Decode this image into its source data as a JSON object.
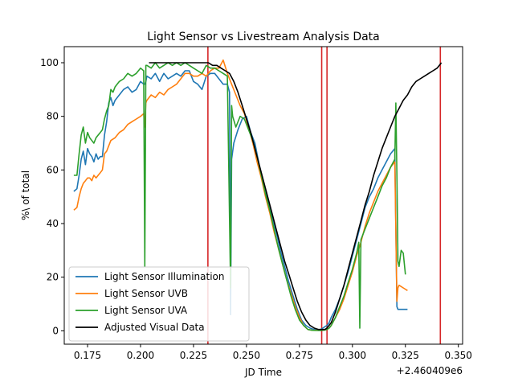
{
  "chart_data": {
    "type": "line",
    "title": "Light Sensor vs Livestream Analysis Data",
    "xlabel": "JD Time",
    "ylabel": "%\\ of total",
    "x_offset_label": "+2.460409e6",
    "xlim": [
      0.164,
      0.352
    ],
    "ylim": [
      -5,
      106
    ],
    "xticks": [
      0.175,
      0.2,
      0.225,
      0.25,
      0.275,
      0.3,
      0.325,
      0.35
    ],
    "xtick_labels": [
      "0.175",
      "0.200",
      "0.225",
      "0.250",
      "0.275",
      "0.300",
      "0.325",
      "0.350"
    ],
    "yticks": [
      0,
      20,
      40,
      60,
      80,
      100
    ],
    "ytick_labels": [
      "0",
      "20",
      "40",
      "60",
      "80",
      "100"
    ],
    "grid": false,
    "legend_position": "lower-left",
    "vertical_lines": {
      "color": "#d62728",
      "x": [
        0.2318,
        0.2855,
        0.288,
        0.3415
      ]
    },
    "series": [
      {
        "name": "Light Sensor Illumination",
        "color": "#1f77b4",
        "x": [
          0.1685,
          0.17,
          0.171,
          0.172,
          0.173,
          0.174,
          0.175,
          0.176,
          0.177,
          0.178,
          0.179,
          0.18,
          0.181,
          0.182,
          0.183,
          0.184,
          0.185,
          0.186,
          0.187,
          0.188,
          0.19,
          0.192,
          0.194,
          0.196,
          0.198,
          0.2,
          0.2015,
          0.202,
          0.2025,
          0.203,
          0.205,
          0.207,
          0.209,
          0.211,
          0.213,
          0.215,
          0.217,
          0.219,
          0.221,
          0.223,
          0.225,
          0.227,
          0.229,
          0.231,
          0.233,
          0.235,
          0.237,
          0.239,
          0.241,
          0.242,
          0.2425,
          0.243,
          0.244,
          0.246,
          0.248,
          0.25,
          0.252,
          0.254,
          0.256,
          0.258,
          0.26,
          0.262,
          0.264,
          0.266,
          0.268,
          0.27,
          0.272,
          0.274,
          0.276,
          0.278,
          0.28,
          0.282,
          0.284,
          0.285,
          0.286,
          0.287,
          0.288,
          0.289,
          0.29,
          0.292,
          0.294,
          0.296,
          0.298,
          0.3,
          0.302,
          0.304,
          0.306,
          0.308,
          0.31,
          0.312,
          0.314,
          0.316,
          0.318,
          0.32,
          0.321,
          0.3215,
          0.322,
          0.324,
          0.326
        ],
        "y": [
          52,
          53,
          58,
          64,
          67,
          62,
          68,
          66,
          65,
          63,
          66,
          64,
          65,
          65,
          73,
          78,
          85,
          87,
          84,
          86,
          88,
          90,
          91,
          89,
          90,
          93,
          92,
          92,
          93,
          95,
          94,
          96,
          93,
          96,
          94,
          95,
          96,
          95,
          97,
          97,
          93,
          92,
          90,
          95,
          96,
          96,
          94,
          92,
          92,
          89,
          6,
          64,
          70,
          75,
          79,
          80,
          74,
          70,
          62,
          55,
          49,
          43,
          37,
          30,
          24,
          18,
          13,
          8,
          4,
          2,
          1,
          0.5,
          0.3,
          0.5,
          1,
          1.5,
          2,
          3,
          5,
          8,
          12,
          17,
          22,
          28,
          34,
          40,
          46,
          50,
          53,
          57,
          60,
          63,
          66,
          68,
          9,
          8,
          8,
          8,
          8
        ]
      },
      {
        "name": "Light Sensor UVB",
        "color": "#ff7f0e",
        "x": [
          0.1685,
          0.17,
          0.171,
          0.172,
          0.173,
          0.174,
          0.175,
          0.176,
          0.177,
          0.178,
          0.179,
          0.18,
          0.181,
          0.182,
          0.183,
          0.184,
          0.185,
          0.186,
          0.188,
          0.19,
          0.192,
          0.194,
          0.196,
          0.198,
          0.2,
          0.2015,
          0.202,
          0.2025,
          0.203,
          0.205,
          0.207,
          0.209,
          0.211,
          0.213,
          0.215,
          0.217,
          0.219,
          0.221,
          0.223,
          0.225,
          0.227,
          0.229,
          0.231,
          0.233,
          0.235,
          0.237,
          0.239,
          0.241,
          0.243,
          0.245,
          0.247,
          0.249,
          0.251,
          0.253,
          0.255,
          0.257,
          0.259,
          0.261,
          0.263,
          0.265,
          0.267,
          0.269,
          0.271,
          0.273,
          0.275,
          0.277,
          0.279,
          0.281,
          0.283,
          0.285,
          0.286,
          0.287,
          0.288,
          0.289,
          0.29,
          0.292,
          0.294,
          0.296,
          0.298,
          0.3,
          0.302,
          0.304,
          0.306,
          0.308,
          0.31,
          0.312,
          0.314,
          0.316,
          0.318,
          0.32,
          0.321,
          0.3215,
          0.322,
          0.324,
          0.326
        ],
        "y": [
          45,
          46,
          50,
          53,
          55,
          56,
          57,
          57,
          56,
          58,
          57,
          58,
          59,
          60,
          66,
          67,
          69,
          71,
          72,
          74,
          75,
          77,
          78,
          79,
          80,
          81,
          76,
          85,
          86,
          88,
          87,
          89,
          88,
          90,
          91,
          92,
          94,
          96,
          96,
          95,
          95,
          96,
          95,
          97,
          98,
          98,
          101,
          96,
          92,
          88,
          84,
          81,
          76,
          70,
          63,
          57,
          50,
          44,
          37,
          31,
          25,
          19,
          14,
          9,
          5,
          2,
          0.5,
          0.2,
          0.2,
          0.2,
          0.2,
          0.3,
          0.5,
          1,
          2,
          5,
          8,
          12,
          17,
          22,
          28,
          33,
          39,
          44,
          48,
          52,
          55,
          58,
          61,
          63,
          11,
          16,
          17,
          16,
          15
        ]
      },
      {
        "name": "Light Sensor UVA",
        "color": "#2ca02c",
        "x": [
          0.1685,
          0.17,
          0.171,
          0.172,
          0.173,
          0.174,
          0.175,
          0.176,
          0.177,
          0.178,
          0.179,
          0.18,
          0.181,
          0.182,
          0.183,
          0.184,
          0.185,
          0.186,
          0.187,
          0.188,
          0.19,
          0.192,
          0.194,
          0.196,
          0.198,
          0.2,
          0.2015,
          0.202,
          0.2025,
          0.203,
          0.205,
          0.207,
          0.209,
          0.211,
          0.213,
          0.215,
          0.217,
          0.219,
          0.221,
          0.223,
          0.225,
          0.227,
          0.229,
          0.231,
          0.233,
          0.235,
          0.237,
          0.239,
          0.241,
          0.2425,
          0.243,
          0.2435,
          0.245,
          0.247,
          0.249,
          0.251,
          0.253,
          0.255,
          0.257,
          0.259,
          0.261,
          0.263,
          0.265,
          0.267,
          0.269,
          0.271,
          0.273,
          0.275,
          0.277,
          0.279,
          0.281,
          0.283,
          0.285,
          0.286,
          0.287,
          0.288,
          0.289,
          0.29,
          0.292,
          0.294,
          0.296,
          0.298,
          0.3,
          0.302,
          0.303,
          0.3035,
          0.304,
          0.306,
          0.308,
          0.31,
          0.312,
          0.314,
          0.316,
          0.318,
          0.32,
          0.3205,
          0.321,
          0.3215,
          0.322,
          0.323,
          0.324,
          0.325
        ],
        "y": [
          58,
          58,
          66,
          73,
          76,
          70,
          74,
          72,
          71,
          70,
          72,
          73,
          74,
          75,
          79,
          82,
          84,
          90,
          89,
          91,
          93,
          94,
          96,
          95,
          96,
          98,
          97,
          24,
          99,
          99,
          98,
          100,
          98,
          99,
          100,
          99,
          100,
          99,
          100,
          99,
          98,
          97,
          96,
          99,
          98,
          98,
          97,
          96,
          95,
          16,
          84,
          80,
          76,
          80,
          79,
          75,
          71,
          65,
          58,
          51,
          45,
          38,
          31,
          25,
          19,
          13,
          8,
          4,
          2,
          0.5,
          0.2,
          0.1,
          0.1,
          0.2,
          0.3,
          0.5,
          1,
          2,
          5,
          9,
          13,
          18,
          23,
          29,
          33,
          1,
          34,
          38,
          42,
          46,
          50,
          54,
          57,
          61,
          64,
          85,
          58,
          26,
          24,
          30,
          29,
          21
        ]
      },
      {
        "name": "Adjusted Visual Data",
        "color": "#000000",
        "x": [
          0.204,
          0.21,
          0.216,
          0.222,
          0.228,
          0.232,
          0.234,
          0.236,
          0.238,
          0.24,
          0.242,
          0.244,
          0.246,
          0.248,
          0.25,
          0.252,
          0.254,
          0.256,
          0.258,
          0.26,
          0.262,
          0.264,
          0.266,
          0.268,
          0.27,
          0.272,
          0.274,
          0.276,
          0.278,
          0.28,
          0.282,
          0.284,
          0.285,
          0.286,
          0.287,
          0.288,
          0.29,
          0.292,
          0.294,
          0.296,
          0.298,
          0.3,
          0.302,
          0.304,
          0.306,
          0.308,
          0.31,
          0.312,
          0.314,
          0.316,
          0.318,
          0.32,
          0.322,
          0.324,
          0.326,
          0.328,
          0.33,
          0.332,
          0.334,
          0.336,
          0.338,
          0.34,
          0.342
        ],
        "y": [
          100,
          100,
          100,
          100,
          100,
          100,
          99,
          99,
          98,
          97,
          96,
          93,
          89,
          84,
          79,
          74,
          68,
          62,
          56,
          50,
          44,
          38,
          32,
          26,
          21,
          16,
          11,
          7,
          4,
          2,
          1,
          0.5,
          0.5,
          0.5,
          0.5,
          1,
          3,
          7,
          12,
          17,
          23,
          29,
          35,
          41,
          47,
          52,
          58,
          63,
          68,
          72,
          76,
          80,
          83,
          86,
          88,
          91,
          93,
          94,
          95,
          96,
          97,
          98,
          100
        ]
      }
    ]
  }
}
